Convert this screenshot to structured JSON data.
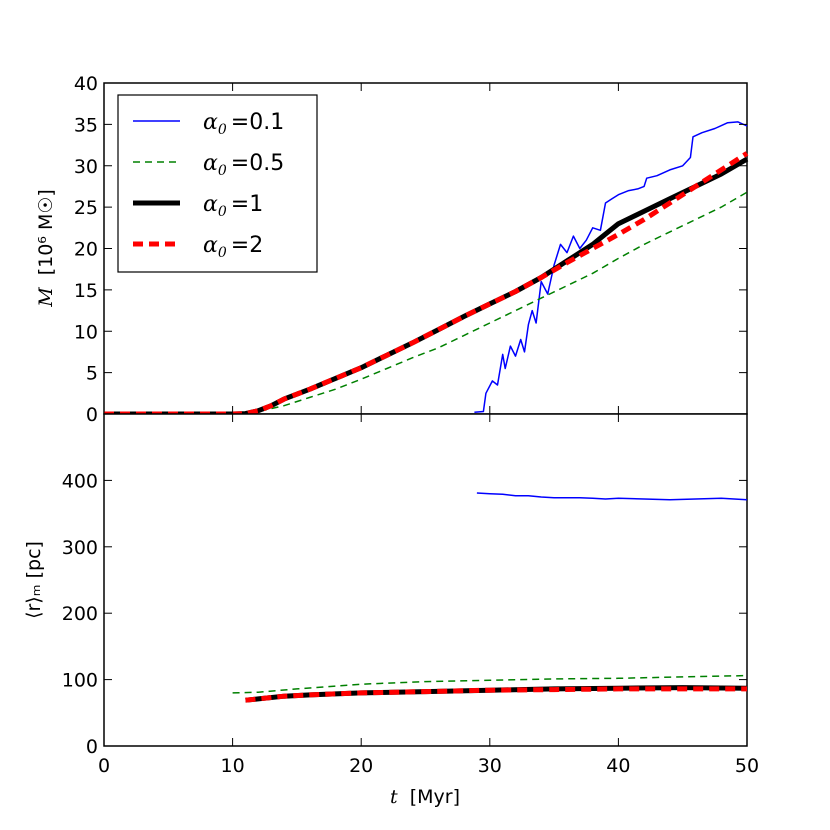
{
  "chart_data": [
    {
      "type": "line",
      "panel": "top",
      "ylabel_symbol": "M",
      "ylabel_units": "[10⁶ M☉]",
      "ylim": [
        0,
        40
      ],
      "xlim": [
        0,
        50
      ],
      "yticks": [
        "0",
        "5",
        "10",
        "15",
        "20",
        "25",
        "30",
        "35",
        "40"
      ],
      "legend_position": "top-left",
      "series": [
        {
          "name": "α0 = 0.1",
          "legend_label": "=0.1",
          "color": "#0000ff",
          "style": "solid-thin",
          "x": [
            0,
            28.8,
            29.5,
            29.7,
            30.2,
            30.6,
            31.0,
            31.2,
            31.6,
            32.0,
            32.4,
            32.7,
            33.0,
            33.3,
            33.6,
            34.0,
            34.5,
            35.0,
            35.5,
            36.0,
            36.5,
            37.0,
            37.5,
            38.0,
            38.6,
            39.0,
            39.5,
            40.0,
            40.8,
            41.5,
            42.0,
            42.2,
            43.0,
            44.0,
            45.0,
            45.6,
            45.8,
            46.5,
            47.5,
            48.5,
            49.3,
            50.0
          ],
          "y": [
            null,
            0.2,
            0.3,
            2.5,
            4.0,
            3.5,
            7.2,
            5.5,
            8.2,
            7.0,
            9.0,
            7.5,
            10.8,
            12.5,
            11.0,
            16.0,
            14.5,
            18.0,
            20.5,
            19.5,
            21.5,
            20.0,
            21.0,
            22.5,
            22.2,
            25.5,
            26.0,
            26.5,
            27.0,
            27.2,
            27.5,
            28.5,
            28.8,
            29.5,
            30.0,
            31.0,
            33.5,
            34.0,
            34.5,
            35.2,
            35.3,
            34.8
          ]
        },
        {
          "name": "α0 = 0.5",
          "legend_label": "=0.5",
          "color": "#008000",
          "style": "dashed",
          "x": [
            0,
            10,
            12,
            14,
            16,
            18,
            20,
            22,
            24,
            26,
            28,
            30,
            32,
            34,
            36,
            38,
            40,
            42,
            44,
            46,
            48,
            50
          ],
          "y": [
            0,
            0,
            0.3,
            1.0,
            2.0,
            3.0,
            4.2,
            5.5,
            6.8,
            8.0,
            9.5,
            11.0,
            12.5,
            14.0,
            15.5,
            17.0,
            18.8,
            20.5,
            22.0,
            23.5,
            25.0,
            26.8
          ]
        },
        {
          "name": "α0 = 1",
          "legend_label": "=1",
          "color": "#000000",
          "style": "solid-thick",
          "x": [
            0,
            10,
            11,
            12,
            13,
            14,
            16,
            18,
            20,
            22,
            24,
            26,
            28,
            30,
            32,
            34,
            36,
            38,
            38.8,
            40,
            42,
            44,
            46,
            48,
            50
          ],
          "y": [
            0,
            0,
            0.05,
            0.4,
            1.0,
            1.8,
            3.0,
            4.3,
            5.6,
            7.1,
            8.6,
            10.2,
            11.8,
            13.3,
            14.8,
            16.5,
            18.5,
            20.5,
            21.5,
            23.0,
            24.5,
            26.0,
            27.5,
            29.0,
            30.8
          ]
        },
        {
          "name": "α0 = 2",
          "legend_label": "=2",
          "color": "#ff0000",
          "style": "dashed-thick",
          "x": [
            0,
            10,
            11,
            12,
            13,
            14,
            16,
            18,
            20,
            22,
            24,
            26,
            28,
            30,
            32,
            34,
            36,
            38,
            40,
            42,
            44,
            46,
            48,
            50
          ],
          "y": [
            0,
            0,
            0.05,
            0.4,
            1.0,
            1.8,
            3.0,
            4.3,
            5.6,
            7.1,
            8.6,
            10.2,
            11.8,
            13.3,
            14.8,
            16.5,
            18.3,
            20.0,
            21.7,
            23.5,
            25.5,
            27.5,
            29.5,
            31.5
          ]
        }
      ]
    },
    {
      "type": "line",
      "panel": "bottom",
      "ylabel": "⟨r⟩ₘ [pc]",
      "ylim": [
        0,
        500
      ],
      "xlim": [
        0,
        50
      ],
      "xlabel_symbol": "t",
      "xlabel_units": "[Myr]",
      "xticks": [
        "0",
        "10",
        "20",
        "30",
        "40",
        "50"
      ],
      "yticks": [
        "0",
        "100",
        "200",
        "300",
        "400"
      ],
      "series": [
        {
          "name": "α0 = 0.1",
          "color": "#0000ff",
          "style": "solid-thin",
          "x": [
            29.0,
            30.0,
            31.0,
            32.0,
            33.0,
            34.0,
            35.0,
            36.0,
            37.0,
            38.0,
            39.0,
            40.0,
            42.0,
            44.0,
            46.0,
            48.0,
            50.0
          ],
          "y": [
            381,
            380,
            379,
            377,
            377,
            375,
            374,
            374,
            374,
            373,
            372,
            373,
            372,
            371,
            372,
            373,
            371
          ]
        },
        {
          "name": "α0 = 0.5",
          "color": "#008000",
          "style": "dashed",
          "x": [
            10.0,
            12.0,
            15.0,
            20.0,
            25.0,
            30.0,
            35.0,
            40.0,
            45.0,
            50.0
          ],
          "y": [
            80,
            81,
            86,
            93,
            97,
            99,
            101,
            102,
            104,
            106
          ]
        },
        {
          "name": "α0 = 1",
          "color": "#000000",
          "style": "solid-thick",
          "x": [
            11.0,
            12.0,
            14.0,
            16.0,
            20.0,
            25.0,
            30.0,
            35.0,
            40.0,
            45.0,
            50.0
          ],
          "y": [
            69,
            71,
            75,
            77,
            80,
            82,
            84,
            86,
            87,
            88,
            87
          ]
        },
        {
          "name": "α0 = 2",
          "color": "#ff0000",
          "style": "dashed-thick",
          "x": [
            11.0,
            12.0,
            14.0,
            16.0,
            20.0,
            25.0,
            30.0,
            35.0,
            40.0,
            45.0,
            50.0
          ],
          "y": [
            69,
            71,
            75,
            77,
            80,
            82,
            84,
            85,
            86,
            86,
            86
          ]
        }
      ]
    }
  ]
}
